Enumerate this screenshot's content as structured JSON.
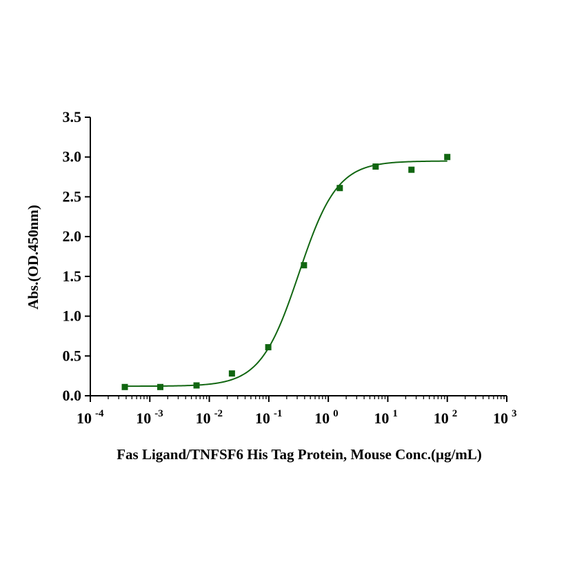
{
  "chart_data": {
    "type": "scatter",
    "title": "",
    "xlabel": "Fas Ligand/TNFSF6 His Tag Protein, Mouse Conc.(μg/mL)",
    "ylabel": "Abs.(OD.450nm)",
    "x_scale": "log",
    "xlim": [
      0.0001,
      1000
    ],
    "ylim": [
      0,
      3.5
    ],
    "x_ticks": [
      {
        "base": "10",
        "exp": "-4",
        "value": 0.0001
      },
      {
        "base": "10",
        "exp": "-3",
        "value": 0.001
      },
      {
        "base": "10",
        "exp": "-2",
        "value": 0.01
      },
      {
        "base": "10",
        "exp": "-1",
        "value": 0.1
      },
      {
        "base": "10",
        "exp": "0",
        "value": 1
      },
      {
        "base": "10",
        "exp": "1",
        "value": 10
      },
      {
        "base": "10",
        "exp": "2",
        "value": 100
      },
      {
        "base": "10",
        "exp": "3",
        "value": 1000
      }
    ],
    "y_ticks": [
      "0.0",
      "0.5",
      "1.0",
      "1.5",
      "2.0",
      "2.5",
      "3.0",
      "3.5"
    ],
    "grid": false,
    "legend": "none",
    "color": "#116611",
    "series": [
      {
        "x": [
          0.00038,
          0.0015,
          0.0061,
          0.024,
          0.098,
          0.39,
          1.56,
          6.25,
          25,
          100
        ],
        "y": [
          0.11,
          0.11,
          0.13,
          0.28,
          0.61,
          1.64,
          2.61,
          2.88,
          2.84,
          3.0
        ]
      }
    ],
    "fit": {
      "model": "4PL",
      "bottom": 0.12,
      "top": 2.95,
      "ec50": 0.32,
      "hill": 1.35
    }
  }
}
